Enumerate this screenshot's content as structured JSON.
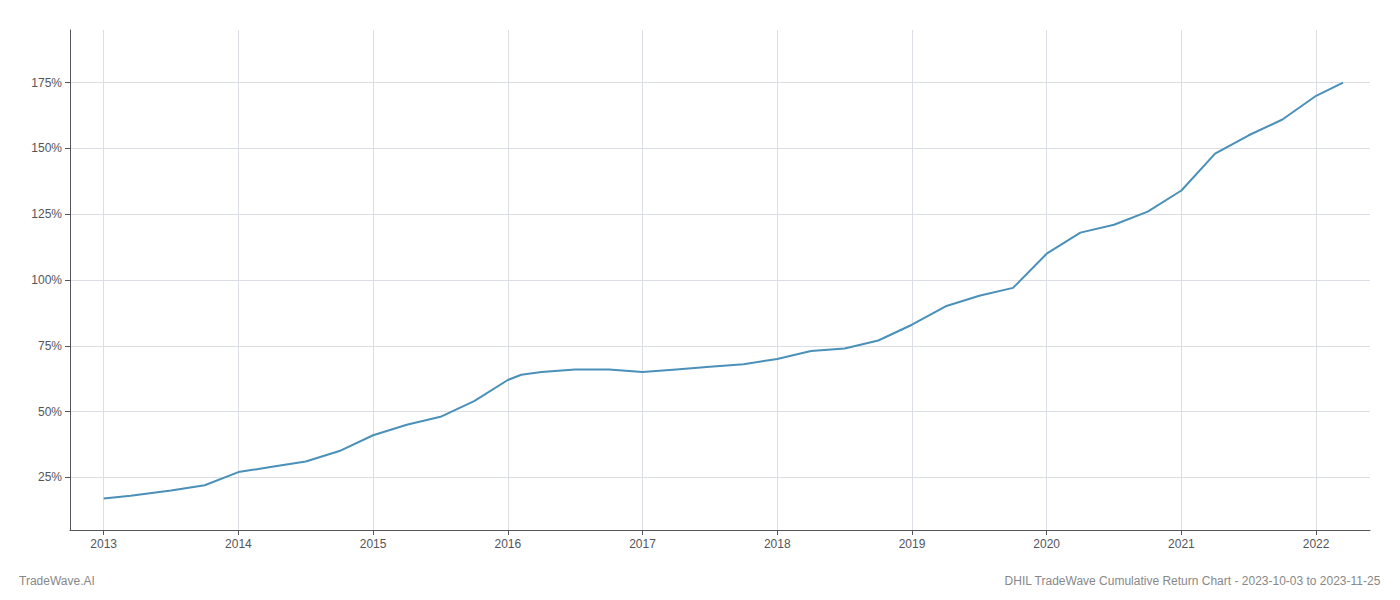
{
  "chart_data": {
    "type": "line",
    "title": "DHIL TradeWave Cumulative Return Chart - 2023-10-03 to 2023-11-25",
    "annotations": [
      "TradeWave.AI"
    ],
    "x": [
      2013.0,
      2013.2,
      2013.5,
      2013.75,
      2014.0,
      2014.25,
      2014.5,
      2014.75,
      2015.0,
      2015.25,
      2015.5,
      2015.75,
      2016.0,
      2016.1,
      2016.25,
      2016.5,
      2016.75,
      2017.0,
      2017.25,
      2017.5,
      2017.75,
      2018.0,
      2018.25,
      2018.5,
      2018.75,
      2019.0,
      2019.25,
      2019.5,
      2019.75,
      2020.0,
      2020.25,
      2020.5,
      2020.75,
      2021.0,
      2021.25,
      2021.5,
      2021.75,
      2022.0,
      2022.2
    ],
    "values": [
      17,
      18,
      20,
      22,
      27,
      29,
      31,
      35,
      41,
      45,
      48,
      54,
      62,
      64,
      65,
      66,
      66,
      65,
      66,
      67,
      68,
      70,
      73,
      74,
      77,
      83,
      90,
      94,
      97,
      110,
      118,
      121,
      126,
      134,
      148,
      155,
      161,
      170,
      175
    ],
    "color": "#4a90b8",
    "xlim": [
      2012.75,
      2022.4
    ],
    "xticks": [
      2013,
      2014,
      2015,
      2016,
      2017,
      2018,
      2019,
      2020,
      2021,
      2022
    ],
    "ylim": [
      5,
      195
    ],
    "yticks": [
      {
        "value": 25,
        "label": "25%"
      },
      {
        "value": 50,
        "label": "50%"
      },
      {
        "value": 75,
        "label": "75%"
      },
      {
        "value": 100,
        "label": "100%"
      },
      {
        "value": 125,
        "label": "125%"
      },
      {
        "value": 150,
        "label": "150%"
      },
      {
        "value": 175,
        "label": "175%"
      }
    ],
    "grid": true
  }
}
